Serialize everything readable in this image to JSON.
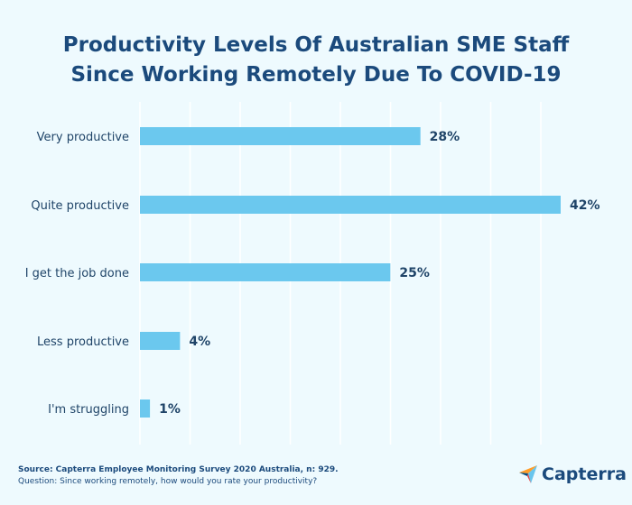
{
  "title_lines": [
    "Productivity Levels Of Australian SME Staff",
    "Since Working Remotely Due To COVID-19"
  ],
  "chart_data": {
    "type": "bar",
    "orientation": "horizontal",
    "title": "Productivity Levels Of Australian SME Staff Since Working Remotely Due To COVID-19",
    "categories": [
      "Very productive",
      "Quite productive",
      "I get the job done",
      "Less productive",
      "I'm struggling"
    ],
    "values": [
      28,
      42,
      25,
      4,
      1
    ],
    "value_labels": [
      "28%",
      "42%",
      "25%",
      "4%",
      "1%"
    ],
    "xlim": [
      0,
      42
    ],
    "grid": true,
    "bar_color": "#6bc8ee",
    "grid_color": "#ffffff",
    "text_color": "#1f4468"
  },
  "footer": {
    "source": "Source: Capterra Employee Monitoring Survey 2020 Australia, n: 929.",
    "question": "Question: Since working remotely, how would you rate your productivity?"
  },
  "brand": {
    "name": "Capterra",
    "icon": "capterra-logo-icon"
  },
  "colors": {
    "background": "#eefafe",
    "title": "#1b4a7c",
    "accent": "#6bc8ee"
  }
}
